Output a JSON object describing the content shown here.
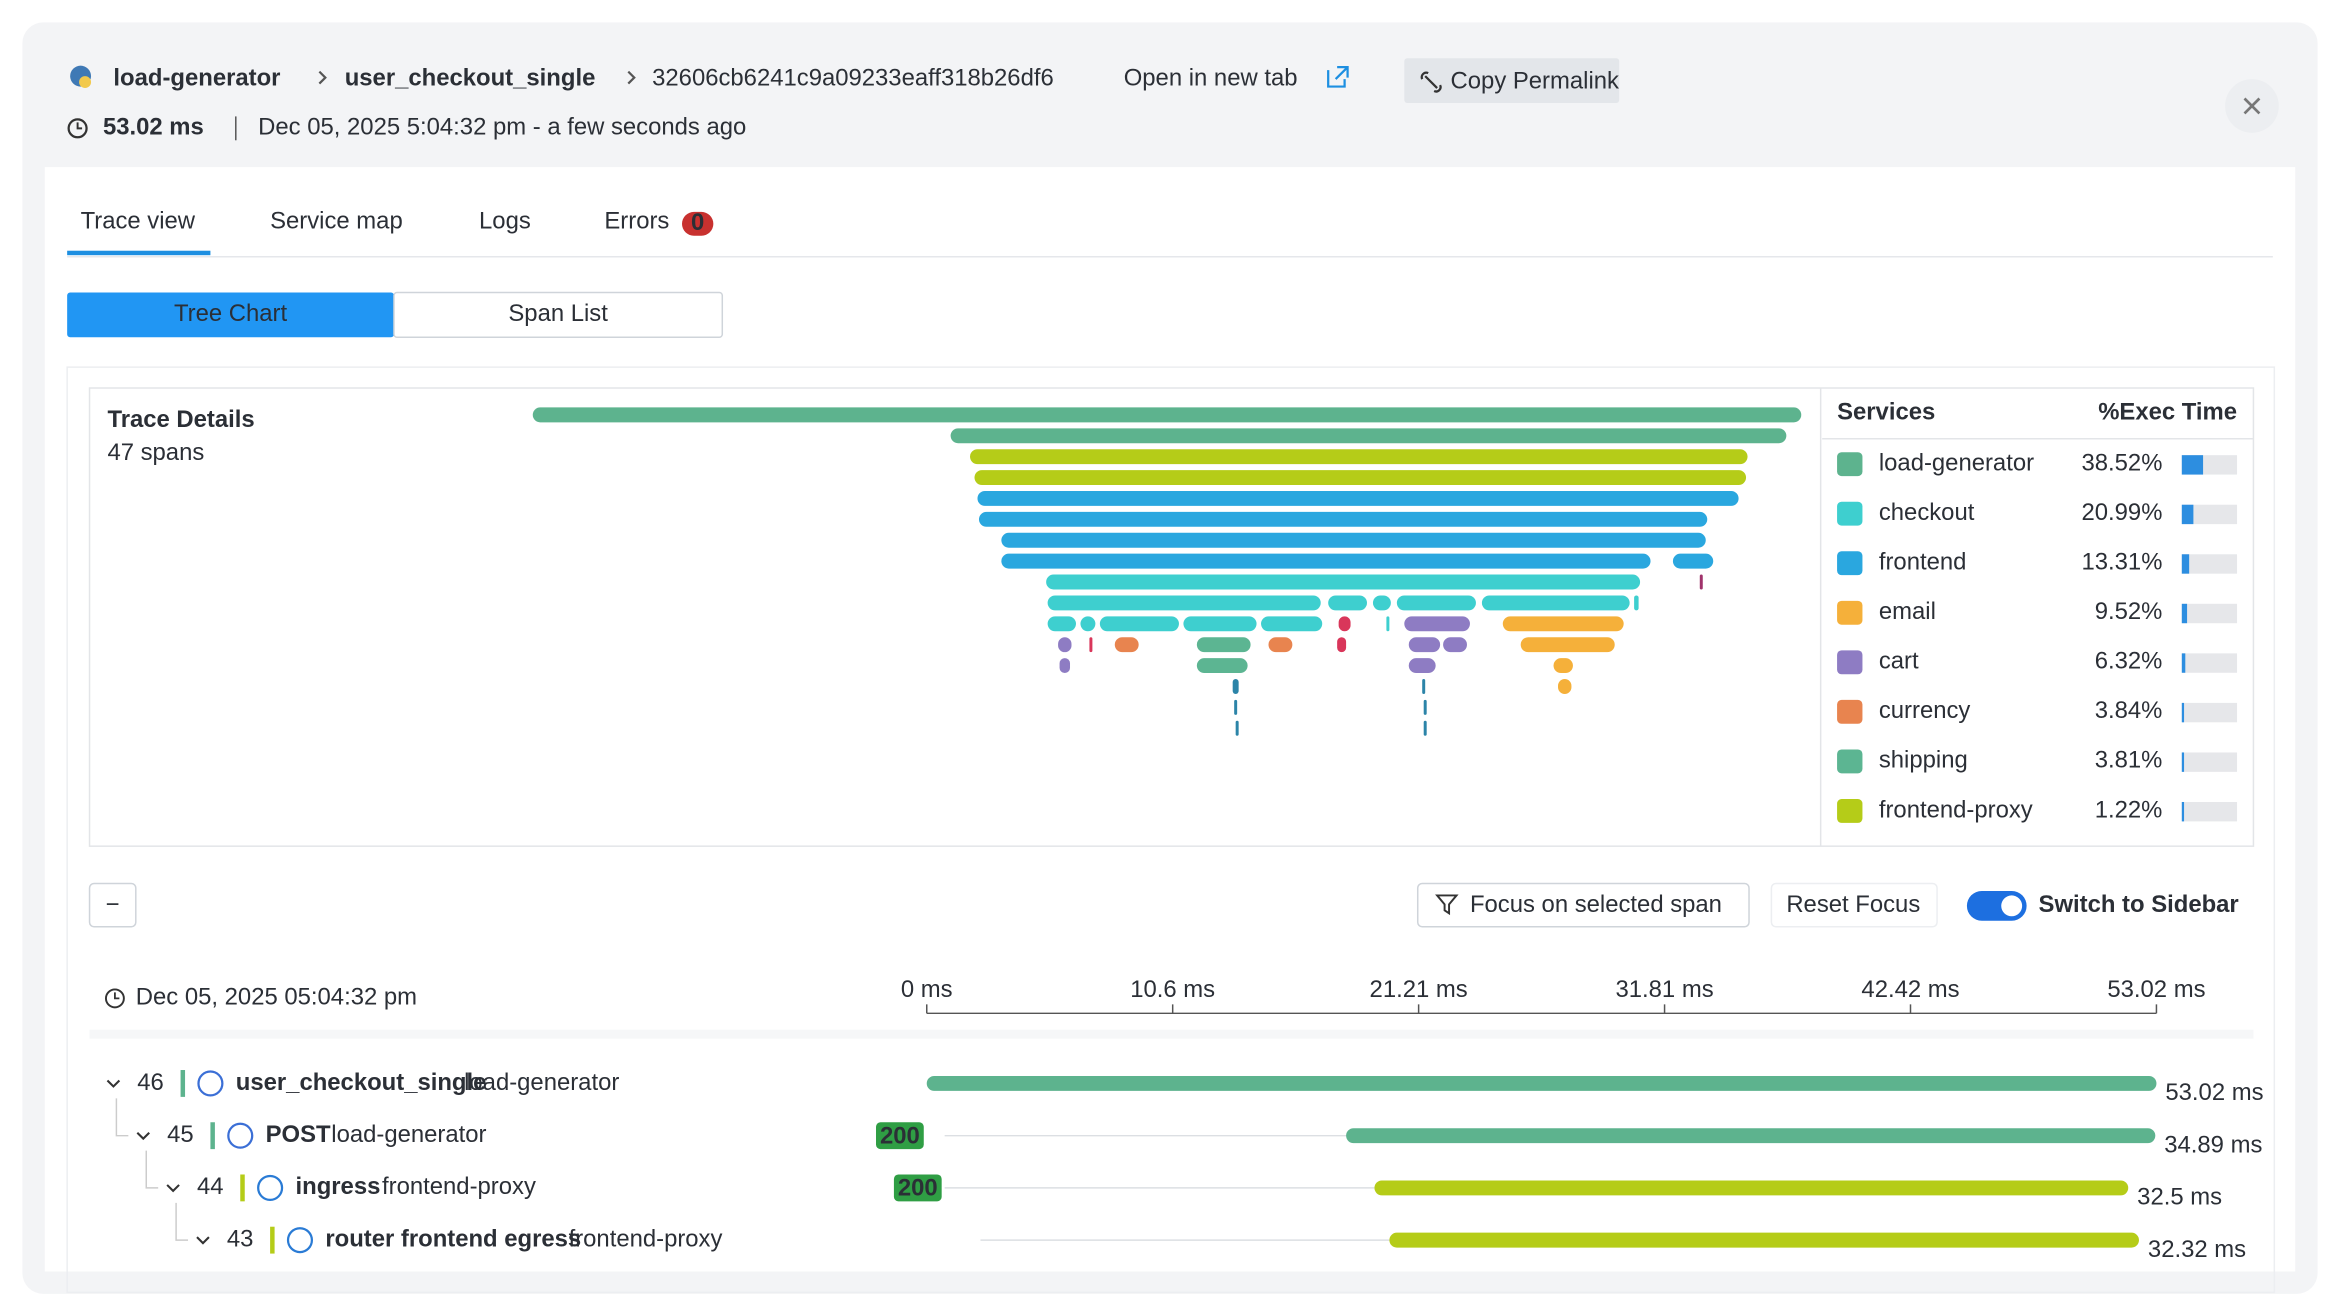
{
  "header": {
    "service": "load-generator",
    "operation": "user_checkout_single",
    "trace_id": "32606cb6241c9a09233eaff318b26df6",
    "open_link": "Open in new tab",
    "copy_button": "Copy Permalink",
    "duration": "53.02 ms",
    "timestamp": "Dec 05, 2025 5:04:32 pm - a few seconds ago"
  },
  "tabs": [
    {
      "label": "Trace view"
    },
    {
      "label": "Service map"
    },
    {
      "label": "Logs"
    },
    {
      "label": "Errors",
      "badge": "0"
    }
  ],
  "view_toggle": [
    "Tree Chart",
    "Span List"
  ],
  "trace_details": {
    "title": "Trace Details",
    "spans": "47 spans"
  },
  "services_table": {
    "headers": [
      "Services",
      "%Exec Time"
    ],
    "rows": [
      {
        "name": "load-generator",
        "color": "#5db38e",
        "exec": "38.52%"
      },
      {
        "name": "checkout",
        "color": "#3ecfcf",
        "exec": "20.99%"
      },
      {
        "name": "frontend",
        "color": "#2aa7df",
        "exec": "13.31%"
      },
      {
        "name": "email",
        "color": "#f5b03a",
        "exec": "9.52%"
      },
      {
        "name": "cart",
        "color": "#8e7cc3",
        "exec": "6.32%"
      },
      {
        "name": "currency",
        "color": "#e8844f",
        "exec": "3.84%"
      },
      {
        "name": "shipping",
        "color": "#5cb592",
        "exec": "3.81%"
      },
      {
        "name": "frontend-proxy",
        "color": "#b5cc18",
        "exec": "1.22%"
      }
    ]
  },
  "controls": {
    "collapse": "−",
    "focus": "Focus on selected span",
    "reset": "Reset Focus",
    "sidebar": "Switch to Sidebar"
  },
  "timeline": {
    "timestamp": "Dec 05, 2025 05:04:32 pm",
    "ticks": [
      "0 ms",
      "10.6 ms",
      "21.21 ms",
      "31.81 ms",
      "42.42 ms",
      "53.02 ms"
    ]
  },
  "spans": [
    {
      "id": "46",
      "name": "user_checkout_single",
      "service": "load-generator",
      "duration": "53.02 ms",
      "color": "#5db38e"
    },
    {
      "id": "45",
      "name": "POST",
      "service": "load-generator",
      "status": "200",
      "duration": "34.89 ms",
      "color": "#5db38e"
    },
    {
      "id": "44",
      "name": "ingress",
      "service": "frontend-proxy",
      "status": "200",
      "duration": "32.5 ms",
      "color": "#b5cc18"
    },
    {
      "id": "43",
      "name": "router frontend egress",
      "service": "frontend-proxy",
      "duration": "32.32 ms",
      "color": "#b5cc18"
    }
  ]
}
